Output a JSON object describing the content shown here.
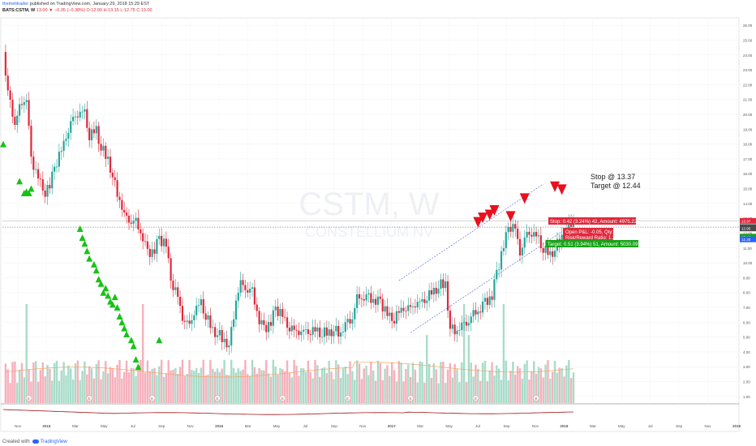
{
  "header": {
    "author": "themelitrader",
    "published_text": "published on TradingView.com, January 29, 2018 15:29 EST",
    "symbol_line": "BATS:CSTM, W",
    "ohlc_text": "13.00 ▼ −0.05 (−0.38%) O:12.90 H:13.15 L:12.75 C:13.00"
  },
  "footer": {
    "created_with": "Created with",
    "brand": "TradingView"
  },
  "watermark": {
    "symbol": "CSTM, W",
    "company": "CONSTELLIUM NV"
  },
  "annotations": {
    "stop_text": "Stop @ 13.37",
    "target_text": "Target @ 12.44"
  },
  "position_tool": {
    "stop_label": "Stop: 0.42 (3.24%) 42, Amount: 4975.22",
    "open_pnl_label": "Open P&L: -0.05, Qty: 59",
    "risk_reward_label": "Risk/Reward Ratio: 1.21",
    "target_label": "Target: 0.51 (3.94%) 51, Amount: 5030.09",
    "stop_price": 13.37,
    "entry_price": 12.95,
    "target_price": 12.44
  },
  "price_tags": [
    {
      "value": "13.37",
      "price": 13.37,
      "color": "#e0293c"
    },
    {
      "value": "13.00",
      "price": 13.0,
      "color": "#4a4a4a"
    },
    {
      "value": "12.95",
      "price": 12.95,
      "color": "#4a4a4a"
    },
    {
      "value": "12.44",
      "price": 12.44,
      "color": "#17a317"
    },
    {
      "value": "12.30",
      "price": 12.3,
      "color": "#2962ff"
    }
  ],
  "colors": {
    "up": "#26a69a",
    "down": "#e0293c",
    "volume_up": "#a8dcc8",
    "volume_down": "#f6b0bc",
    "buy_signal": "#17c217",
    "sell_signal": "#e8101e",
    "channel": "#4a5bd6",
    "ma": "#f4a460",
    "indicator": "#a01414"
  },
  "chart_data": {
    "type": "candlestick",
    "symbol": "BATS:CSTM",
    "interval": "W",
    "ylim": [
      0.5,
      26.5
    ],
    "y_ticks": [
      "26.00",
      "25.00",
      "24.00",
      "23.00",
      "22.00",
      "21.00",
      "20.00",
      "19.00",
      "18.00",
      "17.00",
      "16.00",
      "15.00",
      "14.00",
      "13.00",
      "12.00",
      "11.00",
      "10.00",
      "9.00",
      "8.00",
      "7.00",
      "6.00",
      "5.00",
      "4.00",
      "3.00",
      "2.00",
      "1.00"
    ],
    "x_ticks": [
      "Nov",
      "2015",
      "Mar",
      "May",
      "Jul",
      "Sep",
      "Nov",
      "2016",
      "Mar",
      "May",
      "Jul",
      "Sep",
      "Nov",
      "2017",
      "Mar",
      "May",
      "Jul",
      "Sep",
      "Nov",
      "2018",
      "Mar",
      "May",
      "Jul",
      "Sep",
      "Nov",
      "2019"
    ],
    "closes": [
      24.2,
      21.5,
      19.5,
      20.4,
      21.3,
      16.8,
      16.0,
      14.6,
      15.2,
      16.4,
      17.5,
      18.5,
      19.6,
      20.1,
      20.0,
      18.6,
      18.9,
      17.8,
      17.0,
      15.8,
      14.3,
      13.2,
      12.9,
      12.7,
      11.8,
      10.6,
      10.9,
      11.6,
      11.2,
      8.8,
      7.6,
      6.3,
      5.6,
      6.8,
      7.2,
      6.5,
      5.4,
      5.3,
      4.8,
      4.4,
      7.6,
      8.6,
      8.3,
      8.0,
      6.2,
      5.5,
      6.0,
      6.9,
      6.4,
      5.7,
      5.3,
      5.4,
      5.2,
      5.5,
      5.3,
      5.3,
      5.3,
      5.5,
      5.3,
      5.9,
      6.4,
      7.6,
      7.8,
      7.6,
      7.5,
      7.3,
      6.6,
      6.0,
      6.6,
      6.9,
      6.8,
      7.3,
      7.2,
      7.8,
      8.0,
      8.5,
      8.6,
      5.6,
      5.5,
      5.8,
      6.2,
      6.5,
      7.0,
      7.3,
      7.8,
      9.3,
      11.1,
      12.4,
      12.2,
      10.7,
      11.8,
      12.1,
      11.5,
      11.0,
      10.5,
      11.0,
      11.8,
      12.3,
      13.0
    ],
    "volume_max": 8.0,
    "moving_average_color": "orange",
    "buy_signals": [
      [
        0,
        18.0
      ],
      [
        7,
        15.5
      ],
      [
        8,
        14.7
      ],
      [
        9,
        14.8
      ],
      [
        10,
        14.7
      ],
      [
        11,
        15.0
      ],
      [
        31,
        12.3
      ],
      [
        32,
        11.7
      ],
      [
        33,
        11.3
      ],
      [
        34,
        10.8
      ],
      [
        35,
        10.3
      ],
      [
        36,
        9.9
      ],
      [
        37,
        9.5
      ],
      [
        38,
        8.9
      ],
      [
        39,
        8.6
      ],
      [
        40,
        8.0
      ],
      [
        41,
        8.3
      ],
      [
        42,
        7.8
      ],
      [
        43,
        7.4
      ],
      [
        44,
        7.2
      ],
      [
        45,
        7.7
      ],
      [
        46,
        7.0
      ],
      [
        47,
        6.4
      ],
      [
        48,
        6.0
      ],
      [
        49,
        5.6
      ],
      [
        50,
        5.2
      ],
      [
        51,
        4.8
      ],
      [
        52,
        4.4
      ],
      [
        53,
        3.5
      ],
      [
        54,
        3.0
      ],
      [
        63,
        4.8
      ]
    ],
    "sell_signals": [
      [
        191,
        12.7
      ],
      [
        193,
        13.0
      ],
      [
        195,
        13.2
      ],
      [
        197,
        13.5
      ],
      [
        204,
        13.1
      ],
      [
        209,
        14.3
      ],
      [
        222,
        15.1
      ],
      [
        224,
        14.9
      ]
    ],
    "channel": {
      "upper": [
        [
          170,
          8.8
        ],
        [
          232,
          15.3
        ]
      ],
      "lower": [
        [
          175,
          5.3
        ],
        [
          240,
          12.1
        ]
      ]
    },
    "horizontal_levels": [
      13.37,
      12.95,
      12.44,
      12.3
    ]
  }
}
